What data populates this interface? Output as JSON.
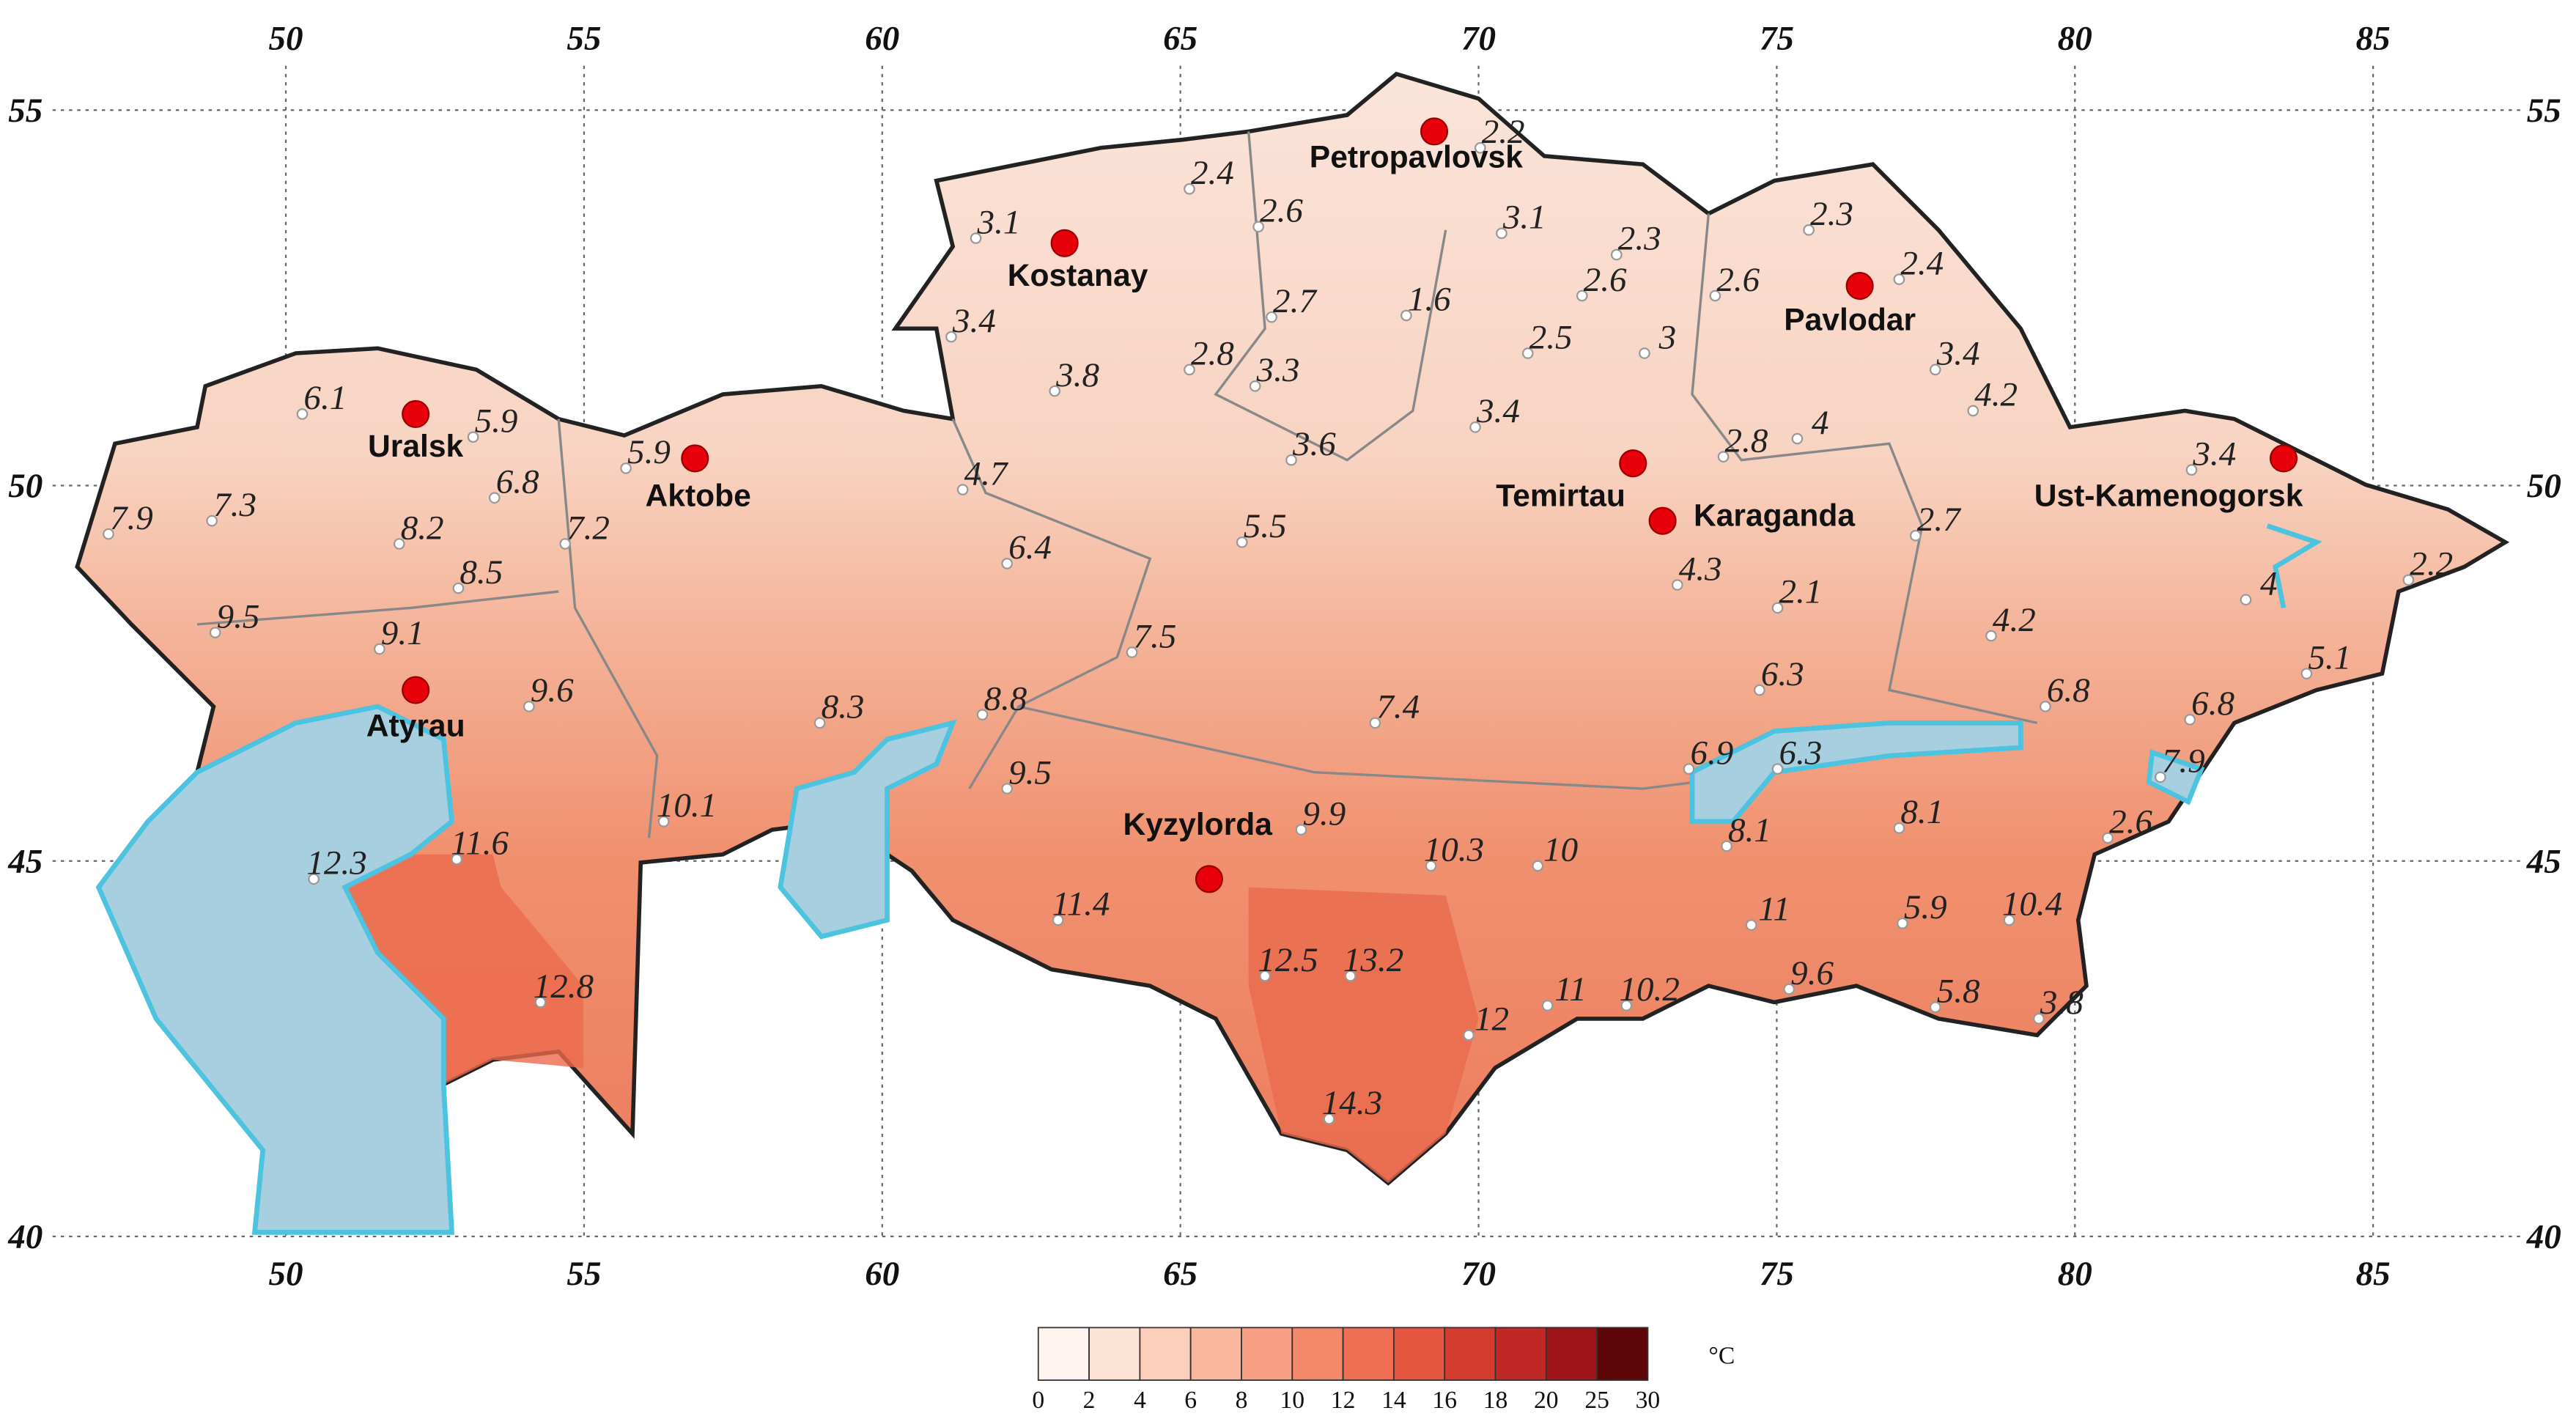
{
  "map": {
    "lon_ticks": [
      50,
      55,
      60,
      65,
      70,
      75,
      80,
      85
    ],
    "lat_ticks": [
      55,
      50,
      45,
      40
    ],
    "cities": [
      "Petropavlovsk",
      "Kostanay",
      "Pavlodar",
      "Uralsk",
      "Aktobe",
      "Temirtau",
      "Karaganda",
      "Ust-Kamenogorsk",
      "Atyrau",
      "Kyzylorda"
    ],
    "stations": [
      2.2,
      2.4,
      3.1,
      2.6,
      3.1,
      2.3,
      2.3,
      2.4,
      2.7,
      1.6,
      2.6,
      2.6,
      3.4,
      2.8,
      3.3,
      2.5,
      3,
      3.4,
      3.8,
      4.2,
      6.1,
      5.9,
      5.9,
      3.6,
      3.4,
      2.8,
      4,
      3.4,
      7.3,
      7.9,
      6.8,
      4.7,
      7.2,
      8.2,
      5.5,
      2.7,
      2.2,
      8.5,
      6.4,
      4.3,
      2.1,
      4,
      9.5,
      9.1,
      4.2,
      7.5,
      5.1,
      6.3,
      9.6,
      8.3,
      8.8,
      7.4,
      6.8,
      6.8,
      6.9,
      6.3,
      7.9,
      9.5,
      10.1,
      9.9,
      8.1,
      8.1,
      2.6,
      11.6,
      10.3,
      10,
      12.3,
      11.4,
      11,
      5.9,
      10.4,
      12.5,
      13.2,
      9.6,
      12.8,
      11,
      10.2,
      5.8,
      3.8,
      12,
      14.3
    ],
    "legend": {
      "unit": "°C",
      "ticks": [
        0,
        2,
        4,
        6,
        8,
        10,
        12,
        14,
        16,
        18,
        20,
        25,
        30
      ],
      "colors": [
        "#fff4ef",
        "#fde2d6",
        "#fbcfbb",
        "#f9b89d",
        "#f7a083",
        "#f4886a",
        "#ef6f55",
        "#e65741",
        "#d43c30",
        "#bf2824",
        "#9e1419",
        "#5e0508"
      ]
    }
  }
}
